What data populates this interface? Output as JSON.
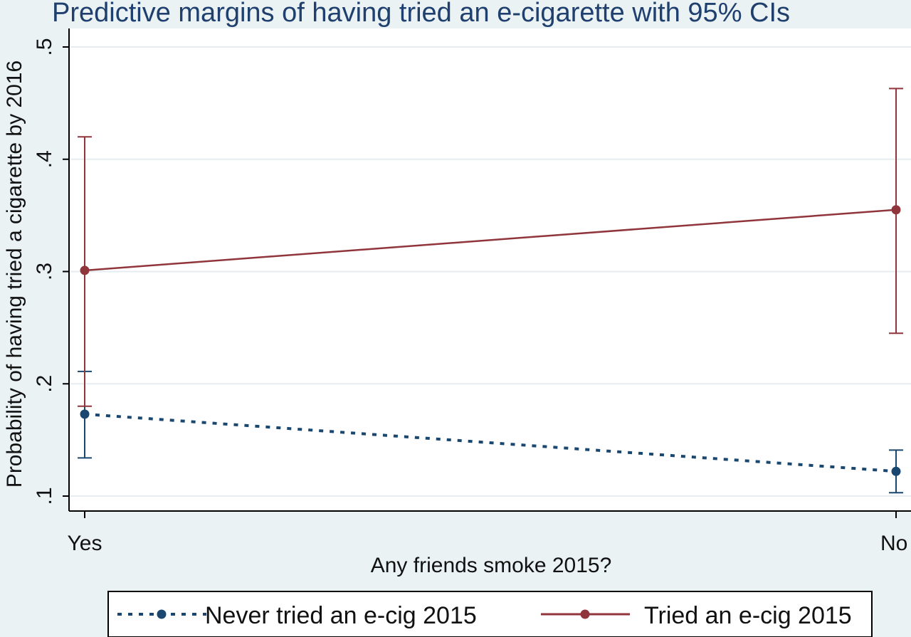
{
  "chart_data": {
    "type": "line",
    "title": "Predictive margins of having tried an e-cigarette with 95% CIs",
    "xlabel": "Any friends smoke 2015?",
    "ylabel": "Probability of having tried a cigarette by 2016",
    "categories": [
      "Yes",
      "No"
    ],
    "ylim": [
      0.1,
      0.5
    ],
    "yticks": [
      0.1,
      0.2,
      0.3,
      0.4,
      0.5
    ],
    "ytick_labels": [
      ".1",
      ".2",
      ".3",
      ".4",
      ".5"
    ],
    "grid": true,
    "legend_position": "bottom",
    "series": [
      {
        "name": "Never tried an e-cig 2015",
        "values": [
          0.173,
          0.122
        ],
        "ci_low": [
          0.134,
          0.103
        ],
        "ci_high": [
          0.211,
          0.141
        ],
        "color": "#1a476f",
        "line_style": "dotted"
      },
      {
        "name": "Tried an e-cig 2015",
        "values": [
          0.301,
          0.355
        ],
        "ci_low": [
          0.18,
          0.245
        ],
        "ci_high": [
          0.42,
          0.463
        ],
        "color": "#90353b",
        "line_style": "solid"
      }
    ]
  }
}
